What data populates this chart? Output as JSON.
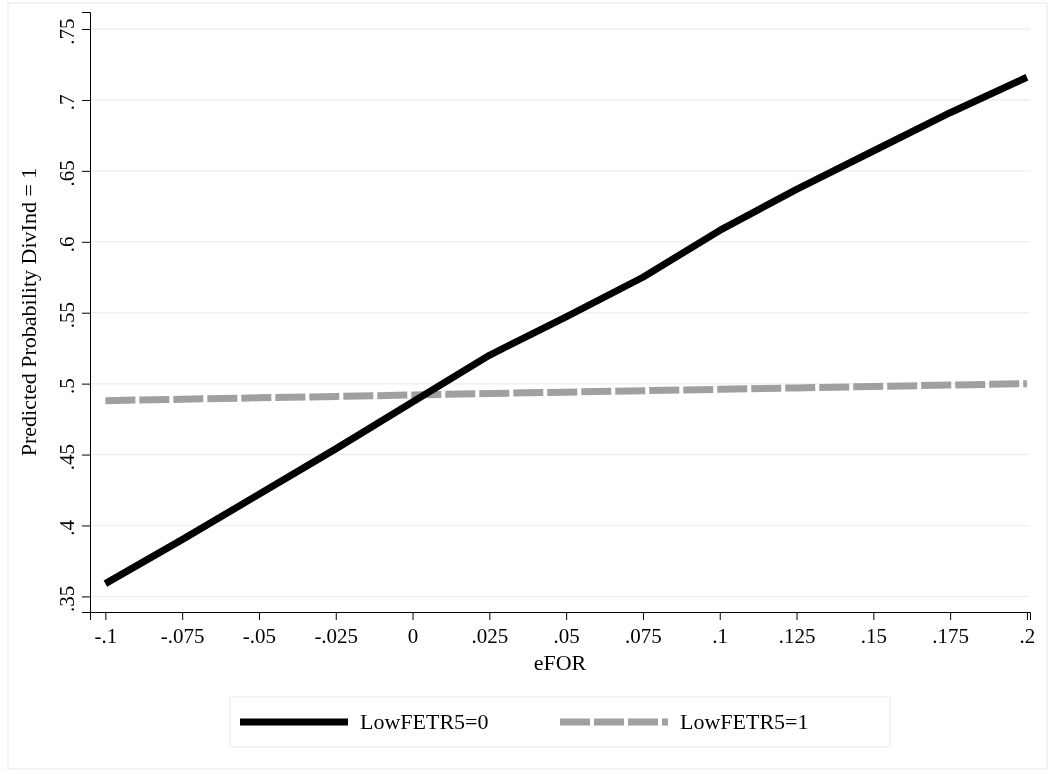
{
  "chart_data": {
    "type": "line",
    "xlabel": "eFOR",
    "ylabel": "Predicted Probability DivInd = 1",
    "x": [
      -0.1,
      -0.075,
      -0.05,
      -0.025,
      0,
      0.025,
      0.05,
      0.075,
      0.1,
      0.125,
      0.15,
      0.175,
      0.2
    ],
    "series": [
      {
        "name": "LowFETR5=0",
        "color": "#000000",
        "line_style": "solid",
        "values": [
          0.359,
          0.39,
          0.422,
          0.454,
          0.487,
          0.52,
          0.547,
          0.575,
          0.608,
          0.637,
          0.664,
          0.691,
          0.716
        ]
      },
      {
        "name": "LowFETR5=1",
        "color": "#a0a0a0",
        "line_style": "dashed",
        "values": [
          0.488,
          0.489,
          0.49,
          0.491,
          0.492,
          0.493,
          0.494,
          0.495,
          0.496,
          0.497,
          0.498,
          0.499,
          0.5
        ]
      }
    ],
    "xlim": [
      -0.105,
      0.201
    ],
    "xticks": [
      {
        "value": -0.1,
        "label": "-.1"
      },
      {
        "value": -0.075,
        "label": "-.075"
      },
      {
        "value": -0.05,
        "label": "-.05"
      },
      {
        "value": -0.025,
        "label": "-.025"
      },
      0,
      {
        "value": 0.025,
        "label": ".025"
      },
      {
        "value": 0.05,
        "label": ".05"
      },
      {
        "value": 0.075,
        "label": ".075"
      },
      {
        "value": 0.1,
        "label": ".1"
      },
      {
        "value": 0.125,
        "label": ".125"
      },
      {
        "value": 0.15,
        "label": ".15"
      },
      {
        "value": 0.175,
        "label": ".175"
      },
      {
        "value": 0.2,
        "label": ".2"
      }
    ],
    "ylim": [
      0.339,
      0.762
    ],
    "yticks": [
      {
        "value": 0.35,
        "label": ".35"
      },
      {
        "value": 0.4,
        "label": ".4"
      },
      {
        "value": 0.45,
        "label": ".45"
      },
      {
        "value": 0.5,
        "label": ".5"
      },
      {
        "value": 0.55,
        "label": ".55"
      },
      {
        "value": 0.6,
        "label": ".6"
      },
      {
        "value": 0.65,
        "label": ".65"
      },
      {
        "value": 0.7,
        "label": ".7"
      },
      {
        "value": 0.75,
        "label": ".75"
      }
    ],
    "grid": "y",
    "legend": "bottom"
  }
}
